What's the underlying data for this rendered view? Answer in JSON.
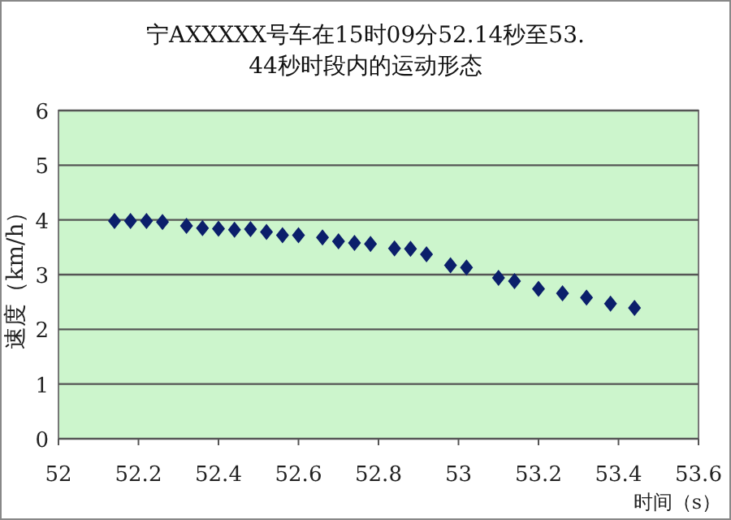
{
  "chart_data": {
    "type": "scatter",
    "title": "宁AXXXXX号车在15时09分52.14秒至53.44秒时段内的运动形态",
    "xlabel": "时间（s）",
    "ylabel": "速度（km/h）",
    "x": [
      52.14,
      52.18,
      52.22,
      52.26,
      52.32,
      52.36,
      52.4,
      52.44,
      52.48,
      52.52,
      52.56,
      52.6,
      52.66,
      52.7,
      52.74,
      52.78,
      52.84,
      52.88,
      52.92,
      52.98,
      53.02,
      53.1,
      53.14,
      53.2,
      53.26,
      53.32,
      53.38,
      53.44
    ],
    "series": [
      {
        "color": "#0b1f6b",
        "values": [
          3.98,
          3.98,
          3.98,
          3.96,
          3.89,
          3.85,
          3.84,
          3.82,
          3.83,
          3.78,
          3.72,
          3.72,
          3.68,
          3.61,
          3.58,
          3.56,
          3.48,
          3.47,
          3.37,
          3.17,
          3.13,
          2.94,
          2.88,
          2.74,
          2.66,
          2.58,
          2.47,
          2.39
        ]
      }
    ],
    "xlim": [
      52,
      53.6
    ],
    "xticks": [
      52,
      52.2,
      52.4,
      52.6,
      52.8,
      53,
      53.2,
      53.4,
      53.6
    ],
    "ylim": [
      0,
      6
    ],
    "yticks": [
      0,
      1,
      2,
      3,
      4,
      5,
      6
    ],
    "grid": "y",
    "marker": "diamond"
  }
}
